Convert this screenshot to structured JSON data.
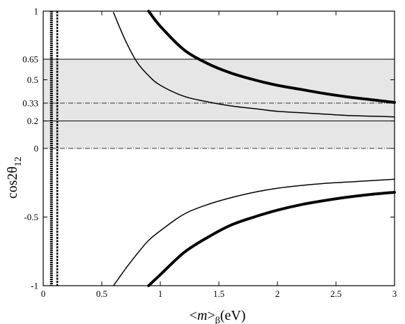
{
  "chart_data": {
    "type": "line",
    "title": "",
    "xlabel": {
      "open": "<",
      "m": "m",
      "close": ">",
      "sub": "β",
      "unit": "(eV)"
    },
    "ylabel": {
      "base": "cos2θ",
      "sub": "12"
    },
    "xlim": [
      0,
      3
    ],
    "ylim": [
      -1,
      1
    ],
    "x_ticks": [
      {
        "value": 0,
        "label": "0"
      },
      {
        "value": 0.5,
        "label": "0.5"
      },
      {
        "value": 1,
        "label": "1"
      },
      {
        "value": 1.5,
        "label": "1.5"
      },
      {
        "value": 2,
        "label": "2"
      },
      {
        "value": 2.5,
        "label": "2.5"
      },
      {
        "value": 3,
        "label": "3"
      }
    ],
    "y_ticks": [
      {
        "value": 1,
        "label": "1"
      },
      {
        "value": 0.65,
        "label": "0.65"
      },
      {
        "value": 0.5,
        "label": "0.5"
      },
      {
        "value": 0.33,
        "label": "0.33"
      },
      {
        "value": 0.2,
        "label": "0.2"
      },
      {
        "value": 0,
        "label": "0"
      },
      {
        "value": -0.5,
        "label": "-0.5"
      },
      {
        "value": -1,
        "label": "-1"
      }
    ],
    "shaded_band": {
      "y_from": 0,
      "y_to": 0.65,
      "color": "#e6e6e6"
    },
    "horizontal_lines": [
      {
        "y": 0.65,
        "style": "solid"
      },
      {
        "y": 0.33,
        "style": "dashdot"
      },
      {
        "y": 0.2,
        "style": "solid"
      },
      {
        "y": 0,
        "style": "dashdot"
      }
    ],
    "vertical_lines": [
      {
        "x": 0.07,
        "style": "dotted-thick"
      },
      {
        "x": 0.12,
        "style": "dotted"
      }
    ],
    "series": [
      {
        "style": "thin",
        "x": [
          0.6,
          0.7,
          0.8,
          0.9,
          1,
          1.2,
          1.4,
          1.6,
          1.8,
          2,
          2.2,
          2.4,
          2.6,
          2.8,
          3
        ],
        "y": [
          0.99,
          0.79,
          0.63,
          0.53,
          0.46,
          0.38,
          0.34,
          0.31,
          0.29,
          0.27,
          0.26,
          0.25,
          0.24,
          0.235,
          0.23
        ]
      },
      {
        "style": "thick",
        "x": [
          0.9,
          1,
          1.2,
          1.4,
          1.6,
          1.8,
          2,
          2.2,
          2.4,
          2.6,
          2.8,
          3
        ],
        "y": [
          1,
          0.89,
          0.72,
          0.62,
          0.55,
          0.5,
          0.46,
          0.43,
          0.4,
          0.375,
          0.355,
          0.335
        ]
      },
      {
        "style": "thin",
        "x": [
          0.6,
          0.7,
          0.8,
          0.9,
          1,
          1.2,
          1.4,
          1.6,
          1.8,
          2,
          2.2,
          2.4,
          2.6,
          2.8,
          3
        ],
        "y": [
          -1,
          -0.88,
          -0.77,
          -0.67,
          -0.6,
          -0.48,
          -0.41,
          -0.36,
          -0.32,
          -0.29,
          -0.27,
          -0.255,
          -0.245,
          -0.235,
          -0.225
        ]
      },
      {
        "style": "thick",
        "x": [
          0.9,
          1,
          1.2,
          1.4,
          1.6,
          1.8,
          2,
          2.2,
          2.4,
          2.6,
          2.8,
          3
        ],
        "y": [
          -1,
          -0.92,
          -0.76,
          -0.65,
          -0.56,
          -0.5,
          -0.45,
          -0.41,
          -0.38,
          -0.355,
          -0.335,
          -0.32
        ]
      }
    ],
    "grid": false,
    "legend": "none"
  }
}
